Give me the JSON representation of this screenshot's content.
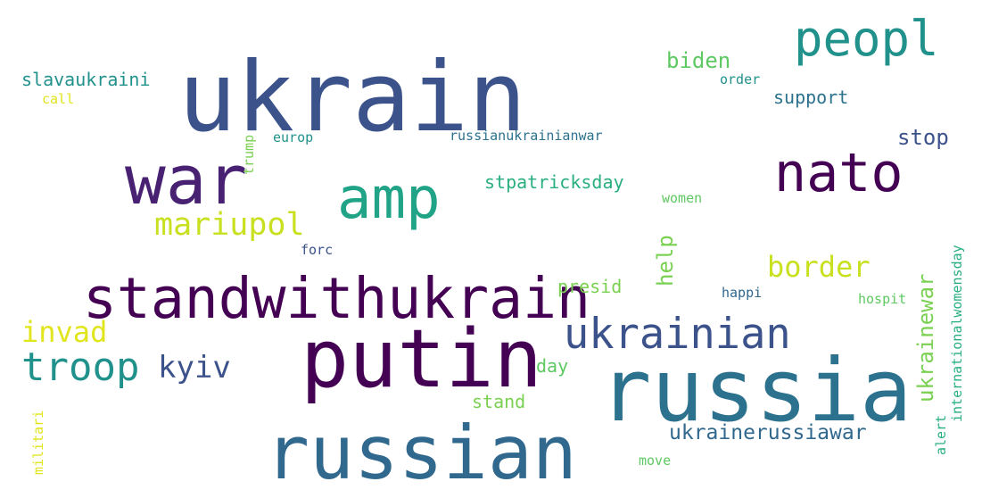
{
  "word_cloud": {
    "words": [
      {
        "text": "ukrain",
        "color": "#3b528b"
      },
      {
        "text": "russia",
        "color": "#2c728e"
      },
      {
        "text": "putin",
        "color": "#440154"
      },
      {
        "text": "russian",
        "color": "#31688e"
      },
      {
        "text": "standwithukrain",
        "color": "#440154"
      },
      {
        "text": "war",
        "color": "#482173"
      },
      {
        "text": "nato",
        "color": "#440154"
      },
      {
        "text": "amp",
        "color": "#20a386"
      },
      {
        "text": "peopl",
        "color": "#21918c"
      },
      {
        "text": "ukrainian",
        "color": "#3b528b"
      },
      {
        "text": "troop",
        "color": "#21918c"
      },
      {
        "text": "mariupol",
        "color": "#c8e020"
      },
      {
        "text": "kyiv",
        "color": "#3b528b"
      },
      {
        "text": "border",
        "color": "#c8e020"
      },
      {
        "text": "invad",
        "color": "#e1e51b"
      },
      {
        "text": "ukrainerussiawar",
        "color": "#31688e"
      },
      {
        "text": "biden",
        "color": "#5ec962"
      },
      {
        "text": "stop",
        "color": "#3b528b"
      },
      {
        "text": "stpatricksday",
        "color": "#29af7f"
      },
      {
        "text": "slavaukraini",
        "color": "#21918c"
      },
      {
        "text": "support",
        "color": "#2c728e"
      },
      {
        "text": "presid",
        "color": "#7ad151"
      },
      {
        "text": "stand",
        "color": "#7ad151"
      },
      {
        "text": "help",
        "color": "#7ad151"
      },
      {
        "text": "ukrainewar",
        "color": "#7ad151"
      },
      {
        "text": "day",
        "color": "#5ec962"
      },
      {
        "text": "russianukrainianwar",
        "color": "#2c728e"
      },
      {
        "text": "europ",
        "color": "#21918c"
      },
      {
        "text": "women",
        "color": "#5ec962"
      },
      {
        "text": "order",
        "color": "#21918c"
      },
      {
        "text": "call",
        "color": "#e1e51b"
      },
      {
        "text": "forc",
        "color": "#3b528b"
      },
      {
        "text": "happi",
        "color": "#31688e"
      },
      {
        "text": "hospit",
        "color": "#5ec962"
      },
      {
        "text": "move",
        "color": "#5ec962"
      },
      {
        "text": "trump",
        "color": "#7ad151"
      },
      {
        "text": "militari",
        "color": "#e1e51b"
      },
      {
        "text": "alert",
        "color": "#29af7f"
      },
      {
        "text": "internationalwomensday",
        "color": "#29af7f"
      }
    ]
  }
}
